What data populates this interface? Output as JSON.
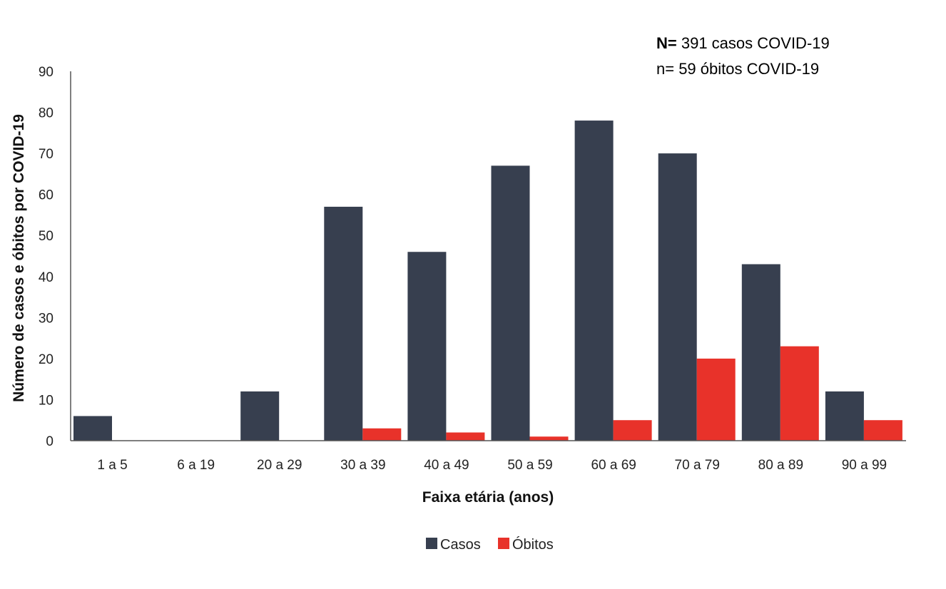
{
  "colors": {
    "casos": "#373f4f",
    "obitos": "#e8322a",
    "axis": "#555555"
  },
  "annotation": {
    "line1_bold": "N=",
    "line1_rest": " 391 casos COVID-19",
    "line2": "n= 59 óbitos COVID-19"
  },
  "chart_data": {
    "type": "bar",
    "xlabel": "Faixa  etária (anos)",
    "ylabel": "Número de casos  e óbitos  por COVID-19",
    "ylim": [
      0,
      90
    ],
    "yticks": [
      0,
      10,
      20,
      30,
      40,
      50,
      60,
      70,
      80,
      90
    ],
    "grid": false,
    "legend_position": "bottom",
    "categories": [
      "1 a 5",
      "6 a 19",
      "20 a 29",
      "30 a 39",
      "40 a 49",
      "50 a 59",
      "60 a 69",
      "70 a 79",
      "80 a 89",
      "90 a 99"
    ],
    "series": [
      {
        "name": "Casos",
        "values": [
          6,
          0,
          12,
          57,
          46,
          67,
          78,
          70,
          43,
          12
        ]
      },
      {
        "name": "Óbitos",
        "values": [
          0,
          0,
          0,
          3,
          2,
          1,
          5,
          20,
          23,
          5
        ]
      }
    ]
  }
}
